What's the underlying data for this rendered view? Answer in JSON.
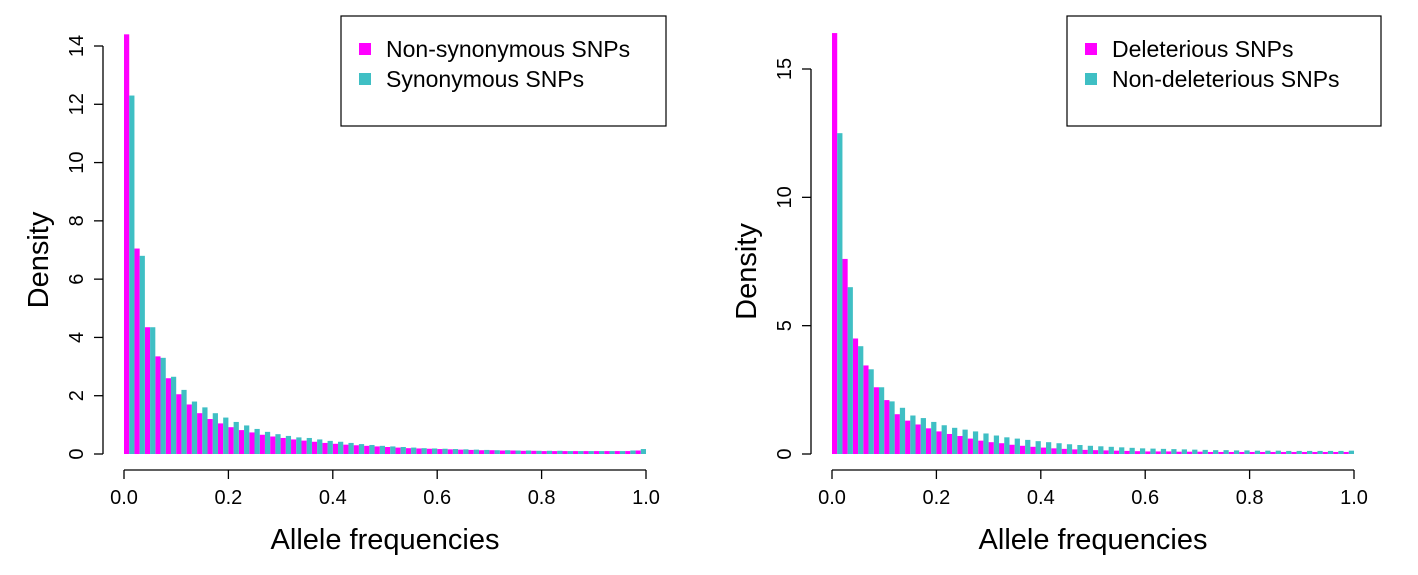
{
  "colors": {
    "primary": "#ff00ff",
    "secondary": "#3fbfc4"
  },
  "chart_data": [
    {
      "type": "bar",
      "bins": 50,
      "xlabel": "Allele frequencies",
      "ylabel": "Density",
      "xlim": [
        0,
        1
      ],
      "ylim": [
        0,
        14
      ],
      "xticks": [
        "0.0",
        "0.2",
        "0.4",
        "0.6",
        "0.8",
        "1.0"
      ],
      "yticks": [
        "0",
        "2",
        "4",
        "6",
        "8",
        "10",
        "12",
        "14"
      ],
      "legend_position": "top-right",
      "series": [
        {
          "name": "Non-synonymous SNPs",
          "color": "#ff00ff",
          "values": [
            14.4,
            7.05,
            4.35,
            3.35,
            2.6,
            2.05,
            1.7,
            1.4,
            1.2,
            1.05,
            0.92,
            0.82,
            0.74,
            0.66,
            0.6,
            0.55,
            0.5,
            0.46,
            0.42,
            0.38,
            0.35,
            0.32,
            0.3,
            0.28,
            0.26,
            0.24,
            0.22,
            0.2,
            0.19,
            0.18,
            0.17,
            0.16,
            0.15,
            0.14,
            0.13,
            0.13,
            0.12,
            0.12,
            0.11,
            0.11,
            0.1,
            0.1,
            0.1,
            0.1,
            0.1,
            0.1,
            0.1,
            0.1,
            0.1,
            0.12
          ]
        },
        {
          "name": "Synonymous SNPs",
          "color": "#3fbfc4",
          "values": [
            12.3,
            6.8,
            4.35,
            3.3,
            2.65,
            2.2,
            1.8,
            1.6,
            1.4,
            1.25,
            1.1,
            0.98,
            0.86,
            0.76,
            0.68,
            0.62,
            0.57,
            0.55,
            0.5,
            0.45,
            0.42,
            0.38,
            0.34,
            0.31,
            0.28,
            0.26,
            0.24,
            0.22,
            0.2,
            0.19,
            0.18,
            0.17,
            0.16,
            0.15,
            0.14,
            0.13,
            0.13,
            0.12,
            0.12,
            0.11,
            0.11,
            0.11,
            0.1,
            0.1,
            0.1,
            0.1,
            0.1,
            0.1,
            0.12,
            0.17
          ]
        }
      ]
    },
    {
      "type": "bar",
      "bins": 50,
      "xlabel": "Allele frequencies",
      "ylabel": "Density",
      "xlim": [
        0,
        1
      ],
      "ylim": [
        0,
        16
      ],
      "xticks": [
        "0.0",
        "0.2",
        "0.4",
        "0.6",
        "0.8",
        "1.0"
      ],
      "yticks": [
        "0",
        "5",
        "10",
        "15"
      ],
      "legend_position": "top-right",
      "series": [
        {
          "name": "Deleterious SNPs",
          "color": "#ff00ff",
          "values": [
            16.4,
            7.6,
            4.5,
            3.45,
            2.6,
            2.1,
            1.55,
            1.3,
            1.15,
            1.0,
            0.88,
            0.78,
            0.7,
            0.6,
            0.52,
            0.46,
            0.42,
            0.36,
            0.32,
            0.28,
            0.25,
            0.22,
            0.2,
            0.18,
            0.16,
            0.15,
            0.14,
            0.13,
            0.12,
            0.11,
            0.1,
            0.1,
            0.1,
            0.09,
            0.09,
            0.09,
            0.08,
            0.08,
            0.08,
            0.08,
            0.08,
            0.08,
            0.08,
            0.08,
            0.08,
            0.08,
            0.08,
            0.08,
            0.08,
            0.08
          ]
        },
        {
          "name": "Non-deleterious SNPs",
          "color": "#3fbfc4",
          "values": [
            12.5,
            6.5,
            4.2,
            3.3,
            2.6,
            2.05,
            1.8,
            1.5,
            1.4,
            1.25,
            1.12,
            1.02,
            0.95,
            0.88,
            0.8,
            0.72,
            0.65,
            0.6,
            0.55,
            0.5,
            0.46,
            0.42,
            0.38,
            0.35,
            0.32,
            0.3,
            0.28,
            0.26,
            0.24,
            0.22,
            0.21,
            0.2,
            0.19,
            0.18,
            0.17,
            0.16,
            0.15,
            0.15,
            0.14,
            0.14,
            0.13,
            0.13,
            0.13,
            0.12,
            0.12,
            0.12,
            0.12,
            0.12,
            0.12,
            0.13
          ]
        }
      ]
    }
  ]
}
